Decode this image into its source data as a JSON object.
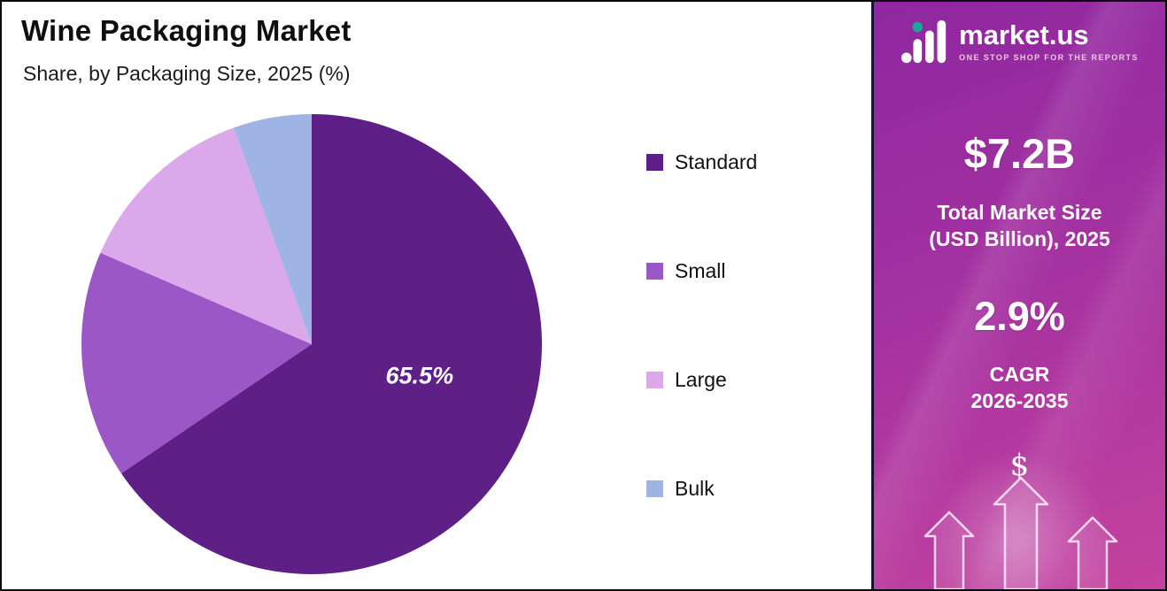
{
  "header": {
    "title": "Wine Packaging Market",
    "subtitle": "Share, by Packaging Size, 2025 (%)"
  },
  "chart_data": {
    "type": "pie",
    "title": "Wine Packaging Market",
    "subtitle": "Share, by Packaging Size, 2025 (%)",
    "labels": [
      "Standard",
      "Small",
      "Large",
      "Bulk"
    ],
    "values": [
      65.5,
      16,
      13,
      5.5
    ],
    "colors": [
      "#5E1F87",
      "#9B57C6",
      "#DBA9E9",
      "#9FB3E4"
    ],
    "value_label": {
      "slice_index": 0,
      "text": "65.5%"
    },
    "start_angle": "top",
    "direction": "clockwise",
    "legend_position": "right"
  },
  "sidebar": {
    "brand": {
      "name": "market.us",
      "tagline": "ONE STOP SHOP FOR THE REPORTS"
    },
    "market_size": {
      "value": "$7.2B",
      "label_line1": "Total Market Size",
      "label_line2": "(USD Billion), 2025"
    },
    "cagr": {
      "value": "2.9%",
      "label_line1": "CAGR",
      "label_line2": "2026-2035"
    },
    "dollar_symbol": "$",
    "colors": {
      "gradient_top": "#8E27A0",
      "gradient_bottom": "#C4429E",
      "border_left": "#191235"
    }
  }
}
